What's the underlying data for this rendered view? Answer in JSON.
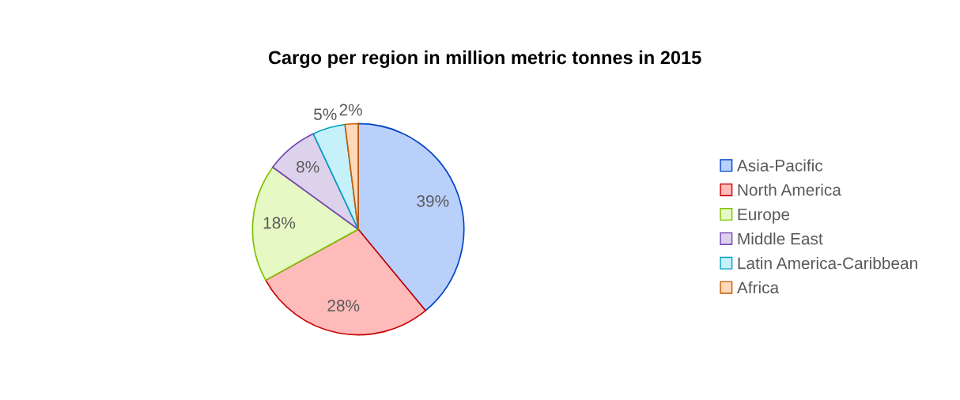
{
  "chart_data": {
    "type": "pie",
    "title": "Cargo per region in million metric tonnes in 2015",
    "categories": [
      "Asia-Pacific",
      "North America",
      "Europe",
      "Middle East",
      "Latin America-Caribbean",
      "Africa"
    ],
    "values": [
      39,
      28,
      18,
      8,
      5,
      2
    ],
    "colors": [
      "#b9d0fb",
      "#ffbaba",
      "#e6f8c4",
      "#ddd2ec",
      "#c6f1fa",
      "#fed8b8"
    ],
    "value_labels": [
      "39%",
      "28%",
      "18%",
      "8%",
      "5%",
      "2%"
    ],
    "legend": "right"
  }
}
